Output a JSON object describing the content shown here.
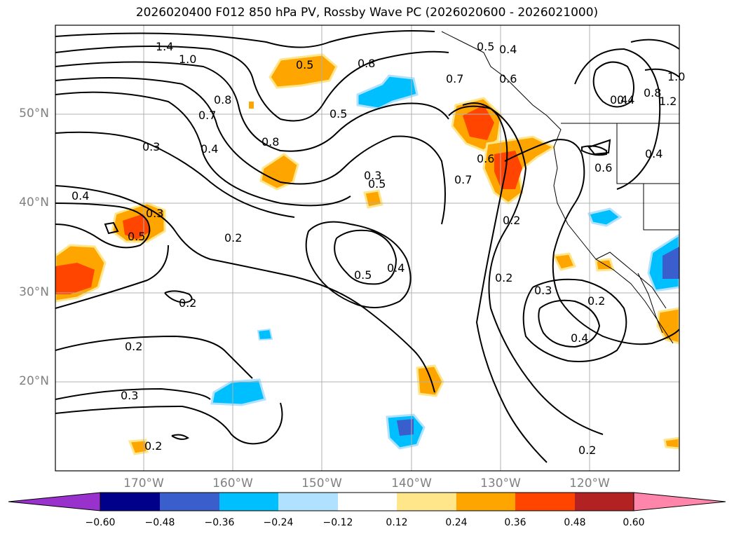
{
  "title": "2026020400 F012 850 hPa PV, Rossby Wave PC (2026020600 - 2026021000)",
  "lat_labels": [
    "50°N",
    "40°N",
    "30°N",
    "20°N"
  ],
  "lon_labels": [
    "170°W",
    "160°W",
    "150°W",
    "140°W",
    "130°W",
    "120°W"
  ],
  "colorbar": {
    "ticks": [
      "−0.60",
      "−0.48",
      "−0.36",
      "−0.24",
      "−0.12",
      "0.12",
      "0.24",
      "0.36",
      "0.48",
      "0.60"
    ],
    "colors": [
      "#9932cc",
      "#00008b",
      "#3a5fcd",
      "#00bfff",
      "#b0e2ff",
      "#ffffff",
      "#ffe68a",
      "#ffa500",
      "#ff4500",
      "#b22222",
      "#ff85aa"
    ]
  },
  "contour_labels": [
    "1.4",
    "1.0",
    "0.8",
    "0.7",
    "0.3",
    "0.4",
    "0.5",
    "0.8",
    "0.5",
    "0.8",
    "0.5",
    "0.4",
    "0.3",
    "0.2",
    "0.2",
    "0.2",
    "0.3",
    "0.2",
    "0.5",
    "0.4",
    "0.5",
    "0.3",
    "0.6",
    "0.7",
    "0.6",
    "0.2",
    "0.2",
    "0.3",
    "0.2",
    "0.4",
    "0.2",
    "0.5",
    "0.4",
    "0.4",
    "0.6",
    "0.4",
    "0.8",
    "1.2",
    "1.0",
    "0.4",
    "0.7"
  ],
  "colors": {
    "frame": "#000000",
    "grid": "#b0b0b0",
    "coast": "#000000"
  }
}
